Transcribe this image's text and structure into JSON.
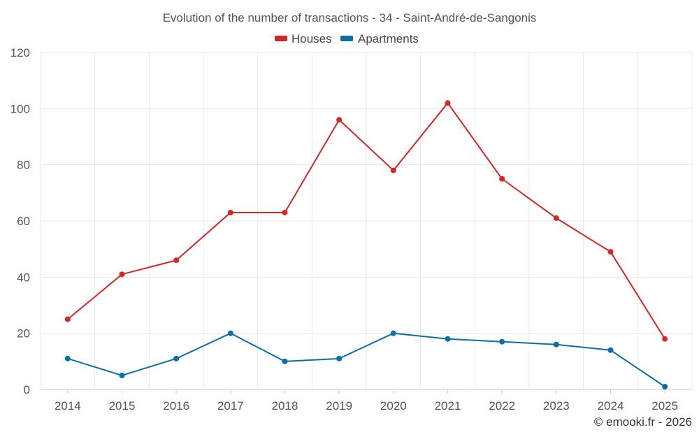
{
  "chart_data": {
    "type": "line",
    "title": "Evolution of the number of transactions - 34 - Saint-André-de-Sangonis",
    "xlabel": "",
    "ylabel": "",
    "categories": [
      "2014",
      "2015",
      "2016",
      "2017",
      "2018",
      "2019",
      "2020",
      "2021",
      "2022",
      "2023",
      "2024",
      "2025"
    ],
    "ylim": [
      0,
      120
    ],
    "yticks": [
      0,
      20,
      40,
      60,
      80,
      100,
      120
    ],
    "grid": true,
    "legend_position": "top-center",
    "series": [
      {
        "name": "Houses",
        "color": "#d62728",
        "values": [
          25,
          41,
          46,
          63,
          63,
          96,
          78,
          102,
          75,
          61,
          49,
          18
        ]
      },
      {
        "name": "Apartments",
        "color": "#0b6ea8",
        "values": [
          11,
          5,
          11,
          20,
          10,
          11,
          20,
          18,
          17,
          16,
          14,
          1
        ]
      }
    ]
  },
  "credit": "© emooki.fr - 2026"
}
